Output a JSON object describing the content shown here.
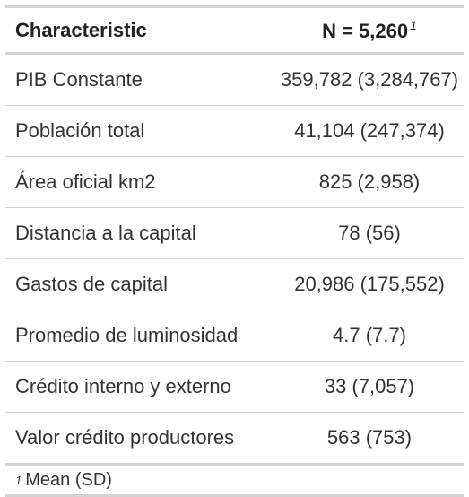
{
  "header": {
    "characteristic": "Characteristic",
    "n_label": "N = 5,260",
    "n_marker": "1"
  },
  "rows": [
    {
      "label": "PIB Constante",
      "value": "359,782 (3,284,767)"
    },
    {
      "label": "Población total",
      "value": "41,104 (247,374)"
    },
    {
      "label": "Área oficial km2",
      "value": "825 (2,958)"
    },
    {
      "label": "Distancia a la capital",
      "value": "78 (56)"
    },
    {
      "label": "Gastos de capital",
      "value": "20,986 (175,552)"
    },
    {
      "label": "Promedio de luminosidad",
      "value": "4.7 (7.7)"
    },
    {
      "label": "Crédito interno y externo",
      "value": "33 (7,057)"
    },
    {
      "label": "Valor crédito productores",
      "value": "563 (753)"
    }
  ],
  "footnote": {
    "marker": "1",
    "text": "Mean (SD)"
  }
}
